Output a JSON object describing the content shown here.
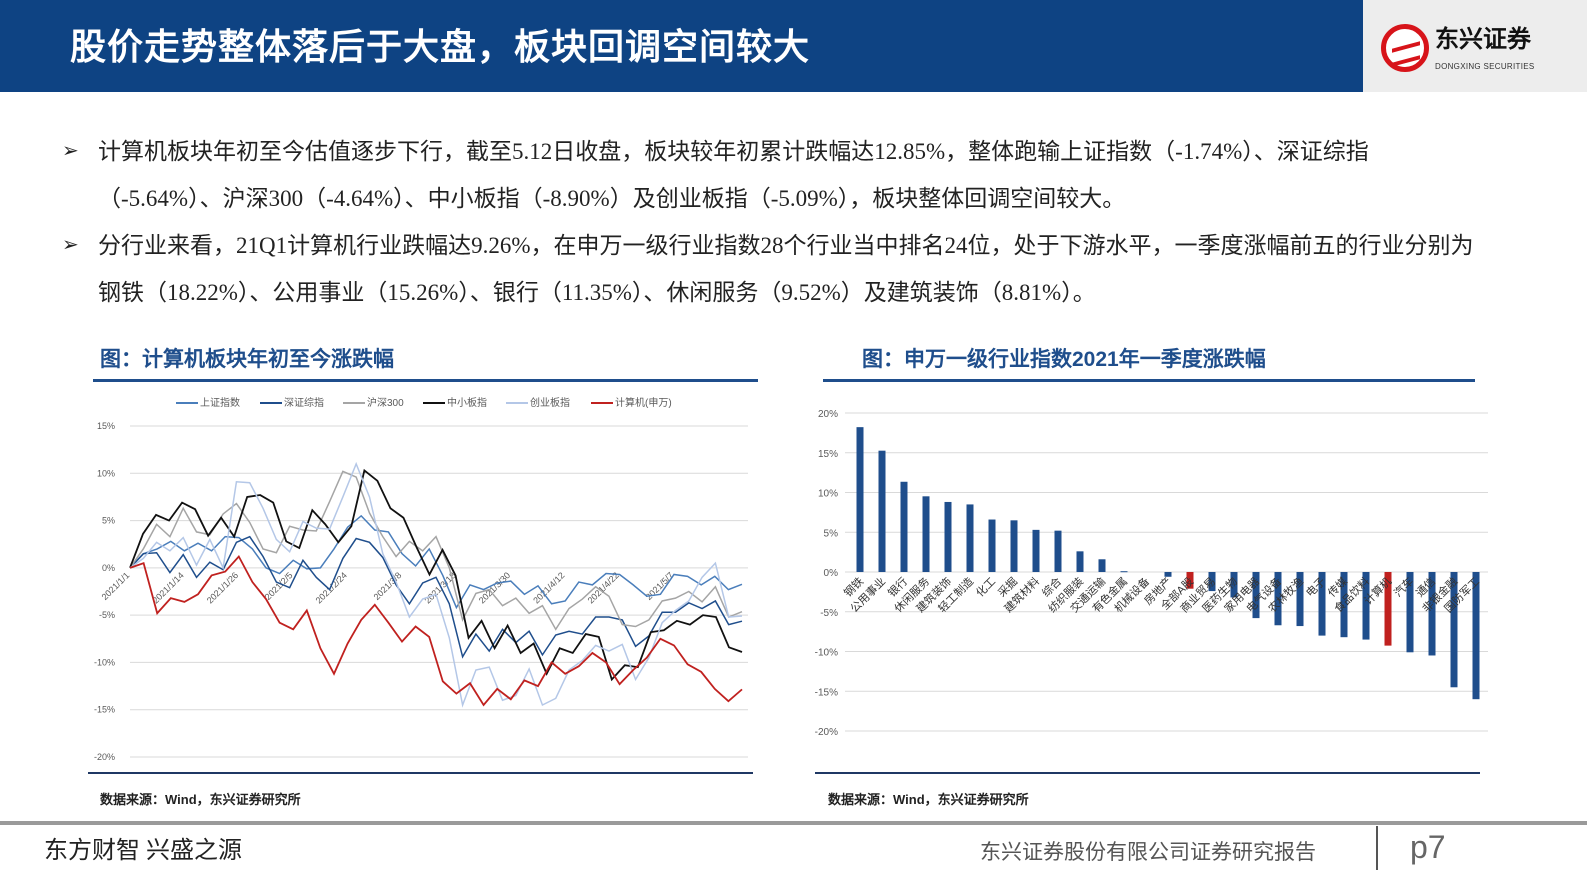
{
  "header": {
    "title": "股价走势整体落后于大盘，板块回调空间较大"
  },
  "logo": {
    "name_cn": "东兴证券",
    "name_en": "DONGXING SECURITIES",
    "color": "#D7141A"
  },
  "bullets": [
    "计算机板块年初至今估值逐步下行，截至5.12日收盘，板块较年初累计跌幅达12.85%，整体跑输上证指数（-1.74%）、深证综指（-5.64%）、沪深300（-4.64%）、中小板指（-8.90%）及创业板指（-5.09%），板块整体回调空间较大。",
    "分行业来看，21Q1计算机行业跌幅达9.26%，在申万一级行业指数28个行业当中排名24位，处于下游水平，一季度涨幅前五的行业分别为钢铁（18.22%）、公用事业（15.26%）、银行（11.35%）、休闲服务（9.52%）及建筑装饰（8.81%）。"
  ],
  "bullet_icon": "arrow-right-icon",
  "charts_meta": [
    {
      "title": "图：计算机板块年初至今涨跌幅",
      "source": "数据来源：Wind，东兴证券研究所"
    },
    {
      "title": "图：申万一级行业指数2021年一季度涨跌幅",
      "source": "数据来源：Wind，东兴证券研究所"
    }
  ],
  "chart_data": [
    {
      "type": "line",
      "legend_position": "top",
      "grid": true,
      "y_tick_labels": [
        "15%",
        "10%",
        "5%",
        "0%",
        "-5%",
        "-10%",
        "-15%",
        "-20%"
      ],
      "ylim": [
        -20,
        15
      ],
      "yunit": "%",
      "x_tick_labels": [
        "2021/1/1",
        "2021/1/14",
        "2021/1/26",
        "2021/2/5",
        "2021/2/24",
        "2021/3/8",
        "2021/3/18",
        "2021/3/30",
        "2021/4/12",
        "2021/4/22",
        "2021/5/7"
      ],
      "series": [
        {
          "name": "上证指数",
          "color": "#4A7EBB",
          "values": [
            0,
            1.5,
            2,
            2.8,
            1.8,
            2.6,
            1.8,
            3.3,
            3.2,
            2,
            0,
            -0.6,
            0.8,
            -0.1,
            0,
            2,
            4.3,
            5.5,
            4,
            3.8,
            1.5,
            0.2,
            2,
            -0.8,
            -4.2,
            -1.8,
            -2.3,
            -1.6,
            -1.4,
            -2.8,
            -1.9,
            -3.8,
            -3.5,
            -1.5,
            -1.8,
            -0.6,
            -0.7,
            -1.8,
            -3,
            -2.8,
            -0.7,
            -0.9,
            -1.8,
            -0.9,
            -2.3,
            -1.74
          ]
        },
        {
          "name": "深证综指",
          "color": "#1F4E8C",
          "values": [
            0,
            1.5,
            1.6,
            -0.5,
            1.4,
            -1,
            0.6,
            -0.2,
            2.7,
            3.3,
            1.2,
            -1.5,
            -2.1,
            0.8,
            -1,
            -2.3,
            1,
            3.1,
            2.7,
            1.1,
            -1.8,
            -3.8,
            -1.6,
            -1,
            -3.8,
            -9.4,
            -7,
            -8.8,
            -6.5,
            -7.9,
            -6.7,
            -9.2,
            -7.1,
            -6.7,
            -7,
            -5.2,
            -5.2,
            -5.5,
            -8.3,
            -7.2,
            -4.7,
            -4.7,
            -3.7,
            -4.3,
            -3.5,
            -6.0,
            -5.64
          ]
        },
        {
          "name": "沪深300",
          "color": "#A5A5A5",
          "values": [
            0,
            2,
            4.6,
            3.3,
            6.3,
            3.8,
            3.5,
            5.7,
            6.8,
            4.8,
            2.0,
            1.6,
            4.4,
            4.0,
            3.9,
            7,
            10.2,
            9.6,
            5.8,
            3.3,
            1.2,
            2.8,
            1.8,
            3.3,
            0,
            -5.5,
            -2.7,
            -2.3,
            -4,
            -3.2,
            -4.8,
            -4,
            -6.5,
            -4.3,
            -3.3,
            -2,
            -3,
            -6,
            -6.2,
            -5.5,
            -3.5,
            -3.2,
            -2.5,
            -3.6,
            -2,
            -5.2,
            -4.64
          ]
        },
        {
          "name": "中小板指",
          "color": "#111111",
          "values": [
            0,
            3.6,
            5.6,
            5,
            6.9,
            6.2,
            3.4,
            5.3,
            3.3,
            7.5,
            7.7,
            6.9,
            2.8,
            2.1,
            6.1,
            4.6,
            2.7,
            4.4,
            10.3,
            9.2,
            6.3,
            5.3,
            2.2,
            -0.7,
            1.9,
            -0.8,
            -7.4,
            -5.6,
            -8.5,
            -6.1,
            -9,
            -8,
            -11.2,
            -8.5,
            -9,
            -7,
            -7.3,
            -11.8,
            -10.3,
            -10.5,
            -6.8,
            -6.6,
            -5.6,
            -6,
            -5,
            -5.2,
            -8.4,
            -8.9
          ]
        },
        {
          "name": "创业板指",
          "color": "#B4C7E7",
          "values": [
            0,
            1,
            2.7,
            1.8,
            3.2,
            0.3,
            3,
            0,
            9.1,
            9,
            6.3,
            3.0,
            1.7,
            4.9,
            4.2,
            4.1,
            7.5,
            11,
            7.5,
            1.5,
            -1.5,
            -5.2,
            -3.3,
            -2.8,
            -7.4,
            -14.5,
            -10.8,
            -10.5,
            -14,
            -13.5,
            -10.7,
            -14.5,
            -13.8,
            -10.8,
            -9.8,
            -8.2,
            -8.8,
            -8.1,
            -11.8,
            -9.5,
            -5.8,
            -4.5,
            -3.5,
            -1,
            0.5,
            -5.2,
            -5.09
          ]
        },
        {
          "name": "计算机(申万)",
          "color": "#C0211F",
          "values": [
            0,
            0.5,
            -4.8,
            -3.2,
            -3.6,
            -2.8,
            -0.8,
            -0.4,
            1.2,
            -1.5,
            -3.3,
            -5.8,
            -6.5,
            -4.5,
            -8.5,
            -11.2,
            -8,
            -5.5,
            -3.9,
            -5.8,
            -7.8,
            -6.2,
            -7.3,
            -12,
            -13.3,
            -12.2,
            -14.5,
            -12.8,
            -13.9,
            -11.9,
            -12.5,
            -10,
            -11.2,
            -10.4,
            -9,
            -10,
            -12.3,
            -10.8,
            -9.5,
            -7.5,
            -8.2,
            -10.2,
            -11,
            -12.8,
            -14.1,
            -12.85
          ]
        }
      ]
    },
    {
      "type": "bar",
      "grid": true,
      "ylim": [
        -20,
        20
      ],
      "y_tick_labels": [
        "20%",
        "15%",
        "10%",
        "5%",
        "0%",
        "-5%",
        "-10%",
        "-15%",
        "-20%"
      ],
      "categories": [
        "钢铁",
        "公用事业",
        "银行",
        "休闲服务",
        "建筑装饰",
        "轻工制造",
        "化工",
        "采掘",
        "建筑材料",
        "综合",
        "纺织服装",
        "交通运输",
        "有色金属",
        "机械设备",
        "房地产",
        "全部A股",
        "商业贸易",
        "医药生物",
        "家用电器",
        "电气设备",
        "农林牧渔",
        "电子",
        "传媒",
        "食品饮料",
        "计算机",
        "汽车",
        "通信",
        "非银金融",
        "国防军工"
      ],
      "values": [
        18.22,
        15.26,
        11.35,
        9.52,
        8.81,
        8.5,
        6.6,
        6.5,
        5.3,
        5.2,
        2.6,
        1.6,
        0.1,
        0,
        -0.6,
        -2.1,
        -2.4,
        -3.2,
        -5.8,
        -6.7,
        -6.8,
        -8.0,
        -8.2,
        -8.5,
        -9.26,
        -10.1,
        -10.5,
        -14.5,
        -16.0
      ],
      "bar_color": "#1F4E8C",
      "highlight_color": "#C0211F",
      "highlighted": [
        "全部A股",
        "计算机"
      ]
    }
  ],
  "footer": {
    "slogan": "东方财智 兴盛之源",
    "company": "东兴证券股份有限公司证券研究报告",
    "page": "p7"
  }
}
